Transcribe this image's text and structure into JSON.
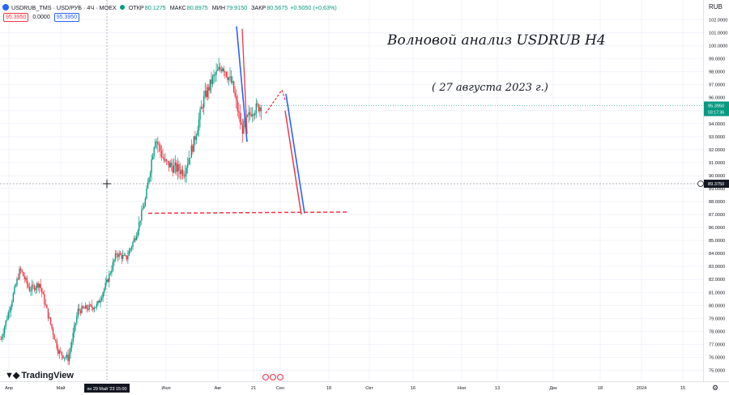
{
  "header": {
    "symbol": "USDRUB_TMS · USD/РУБ · 4Ч · MOEX",
    "open_label": "ОТКР",
    "open_value": "80.1275",
    "high_label": "МАКС",
    "high_value": "80.8975",
    "low_label": "МИН",
    "low_value": "79.9150",
    "close_label": "ЗАКР",
    "close_value": "80.5675",
    "change": "+0.5050 (+0.63%)"
  },
  "order_boxes": {
    "sell": "95.3950",
    "spread": "0.0000",
    "buy": "95.3950"
  },
  "annotations": {
    "title": "Волновой анализ USDRUB H4",
    "date": "( 27 августа 2023 г.)"
  },
  "branding": {
    "logo_text": "TradingView"
  },
  "currency": "RUB",
  "chart_data": {
    "type": "candlestick",
    "price_axis_ticks": [
      "102.0000",
      "101.0000",
      "100.0000",
      "99.0000",
      "98.0000",
      "97.0000",
      "96.0000",
      "95.0000",
      "94.0000",
      "93.0000",
      "92.0000",
      "91.0000",
      "90.0000",
      "89.0000",
      "88.0000",
      "87.0000",
      "86.0000",
      "85.0000",
      "84.0000",
      "83.0000",
      "82.0000",
      "81.0000",
      "80.0000",
      "79.0000",
      "78.0000",
      "77.0000",
      "76.0000",
      "75.0000"
    ],
    "y_range": [
      74.8,
      102.3
    ],
    "time_axis_labels": [
      "Апр",
      "Май",
      "Июл",
      "Авг",
      "21",
      "Сен",
      "18",
      "Окт",
      "16",
      "Ноя",
      "13",
      "Дек",
      "18",
      "2024",
      "15"
    ],
    "crosshair_time_label": "пн 29 Май '23   15:00",
    "current_price": "95.3950",
    "current_countdown": "03:17:36",
    "crosshair_price": "89.3750",
    "color_up": "#089981",
    "color_down": "#f23645",
    "color_blue": "#2962ff",
    "price_path": [
      [
        "Апр",
        77.4
      ],
      [
        "Апр",
        80.0
      ],
      [
        "Апр",
        82.8
      ],
      [
        "Апр",
        81.2
      ],
      [
        "Апр",
        81.7
      ],
      [
        "Май",
        79.0
      ],
      [
        "Май",
        76.4
      ],
      [
        "Май",
        75.9
      ],
      [
        "Май",
        79.6
      ],
      [
        "Май",
        79.8
      ],
      [
        "29 Май",
        80.0
      ],
      [
        "Июн",
        81.8
      ],
      [
        "Июн",
        84.0
      ],
      [
        "Июн",
        83.6
      ],
      [
        "Июн",
        85.4
      ],
      [
        "Июл",
        88.2
      ],
      [
        "Июл",
        93.0
      ],
      [
        "Июл",
        91.0
      ],
      [
        "Июл",
        90.6
      ],
      [
        "Июл",
        90.3
      ],
      [
        "Авг",
        92.5
      ],
      [
        "Авг",
        95.8
      ],
      [
        "Авг",
        97.5
      ],
      [
        "Авг",
        98.5
      ],
      [
        "Авг",
        97.0
      ],
      [
        "Авг",
        93.5
      ],
      [
        "21",
        95.0
      ],
      [
        "21",
        95.4
      ]
    ],
    "projections": {
      "blue_down_1": [
        101.5,
        92.6
      ],
      "red_down_1": [
        101.3,
        93.2
      ],
      "red_up_dashed": [
        94.8,
        96.6
      ],
      "blue_down_2": [
        96.3,
        87.1
      ],
      "red_down_2": [
        95.0,
        87.0
      ],
      "target_level": 87.1
    }
  }
}
